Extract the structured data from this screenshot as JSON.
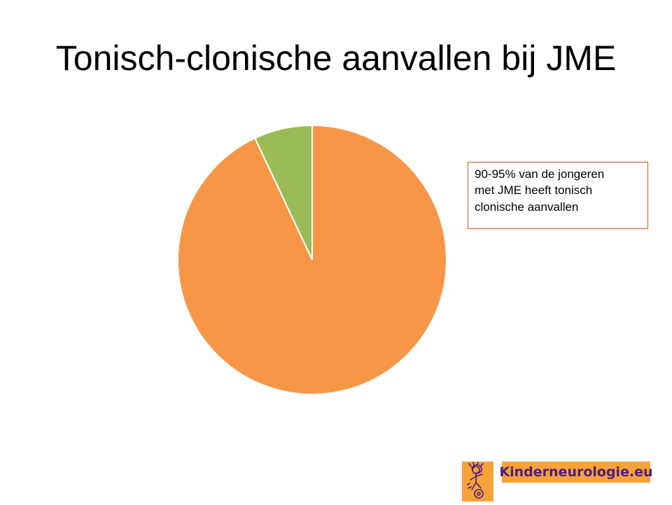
{
  "title": "Tonisch-clonische aanvallen bij JME",
  "callout": {
    "lines": [
      "90-95% van de jongeren",
      "met JME heeft tonisch",
      "clonische aanvallen"
    ]
  },
  "logo": {
    "text": "Kinderneurologie.eu",
    "icon": "child-figure-icon",
    "background_color": "#F6A13A",
    "text_color": "#4A1F7F"
  },
  "chart_data": {
    "type": "pie",
    "title": "",
    "start_angle": "top",
    "direction": "clockwise",
    "legend": "none",
    "slices": [
      {
        "value": 93,
        "color": "#F79646"
      },
      {
        "value": 7,
        "color": "#9BBB59"
      }
    ]
  }
}
